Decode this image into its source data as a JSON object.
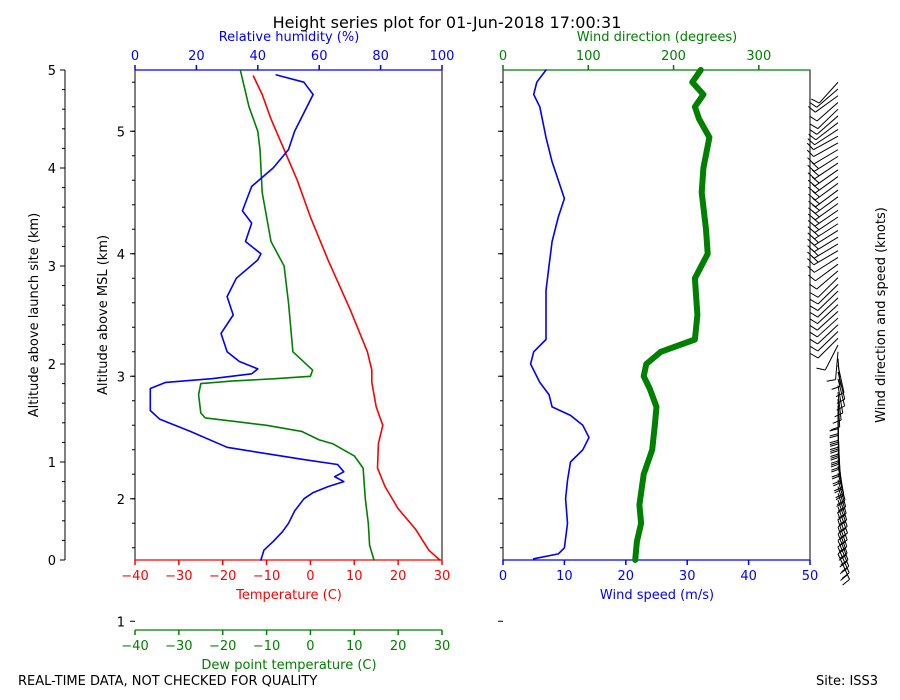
{
  "chart_data": [
    {
      "type": "line",
      "title": "Height series plot for 01-Jun-2018 17:00:31",
      "ylabel_left": "Altitude above launch site (km)",
      "ylabel_inner": "Altitude above MSL (km)",
      "x_bottom": {
        "label": "Temperature (C)",
        "color": "#ff0000",
        "lim": [
          -40,
          30
        ],
        "ticks": [
          "−40",
          "−30",
          "−20",
          "−10",
          "0",
          "10",
          "20",
          "30"
        ]
      },
      "x_bottom2": {
        "label": "Dew point temperature (C)",
        "color": "#008000",
        "lim": [
          -40,
          30
        ],
        "ticks": [
          "−40",
          "−30",
          "−20",
          "−10",
          "0",
          "10",
          "20",
          "30"
        ]
      },
      "x_top": {
        "label": "Relative humidity (%)",
        "color": "#0000ff",
        "lim": [
          0,
          100
        ],
        "ticks": [
          "0",
          "20",
          "40",
          "60",
          "80",
          "100"
        ]
      },
      "y_msl": {
        "lim": [
          1.5,
          5.5
        ],
        "ticks": [
          "1",
          "2",
          "3",
          "4",
          "5"
        ]
      },
      "y_agl": {
        "lim": [
          0,
          5
        ],
        "ticks": [
          "0",
          "1",
          "2",
          "3",
          "4",
          "5"
        ]
      },
      "series": [
        {
          "name": "Temperature",
          "axis": "temp",
          "color": "#ff0000",
          "points": [
            [
              29.5,
              1.5
            ],
            [
              27,
              1.58
            ],
            [
              24,
              1.75
            ],
            [
              20,
              1.92
            ],
            [
              17,
              2.1
            ],
            [
              15.3,
              2.25
            ],
            [
              15.5,
              2.45
            ],
            [
              16.5,
              2.6
            ],
            [
              15,
              2.75
            ],
            [
              14,
              2.95
            ],
            [
              14,
              3.05
            ],
            [
              13,
              3.2
            ],
            [
              9,
              3.55
            ],
            [
              4,
              3.95
            ],
            [
              0,
              4.3
            ],
            [
              -3,
              4.6
            ],
            [
              -6,
              4.85
            ],
            [
              -9,
              5.1
            ],
            [
              -11,
              5.3
            ],
            [
              -13,
              5.45
            ]
          ]
        },
        {
          "name": "Dew point temperature",
          "axis": "temp",
          "color": "#008000",
          "points": [
            [
              14.5,
              1.5
            ],
            [
              14,
              1.56
            ],
            [
              13.5,
              1.62
            ],
            [
              13.2,
              1.8
            ],
            [
              12.5,
              2.0
            ],
            [
              12,
              2.25
            ],
            [
              11,
              2.3
            ],
            [
              10,
              2.35
            ],
            [
              5,
              2.45
            ],
            [
              2,
              2.48
            ],
            [
              -2,
              2.55
            ],
            [
              -10,
              2.6
            ],
            [
              -17,
              2.63
            ],
            [
              -24,
              2.66
            ],
            [
              -25,
              2.7
            ],
            [
              -25.5,
              2.85
            ],
            [
              -25,
              2.94
            ],
            [
              -18,
              2.96
            ],
            [
              -8,
              2.98
            ],
            [
              0,
              3.0
            ],
            [
              0.5,
              3.05
            ],
            [
              -4,
              3.2
            ],
            [
              -4.5,
              3.4
            ],
            [
              -5,
              3.6
            ],
            [
              -6,
              3.9
            ],
            [
              -9,
              4.1
            ],
            [
              -11,
              4.5
            ],
            [
              -11.5,
              4.85
            ],
            [
              -12,
              5.0
            ],
            [
              -14,
              5.2
            ],
            [
              -16,
              5.5
            ]
          ]
        },
        {
          "name": "Relative humidity",
          "axis": "rh",
          "color": "#0000ff",
          "points": [
            [
              41,
              1.5
            ],
            [
              42,
              1.58
            ],
            [
              45,
              1.65
            ],
            [
              48,
              1.73
            ],
            [
              50,
              1.8
            ],
            [
              52,
              1.9
            ],
            [
              55,
              2.0
            ],
            [
              58,
              2.05
            ],
            [
              63,
              2.1
            ],
            [
              68,
              2.14
            ],
            [
              65,
              2.18
            ],
            [
              68,
              2.22
            ],
            [
              66,
              2.28
            ],
            [
              55,
              2.32
            ],
            [
              45,
              2.36
            ],
            [
              30,
              2.42
            ],
            [
              18,
              2.55
            ],
            [
              8,
              2.65
            ],
            [
              5,
              2.72
            ],
            [
              5,
              2.9
            ],
            [
              10,
              2.95
            ],
            [
              25,
              2.98
            ],
            [
              38,
              3.02
            ],
            [
              40,
              3.06
            ],
            [
              34,
              3.12
            ],
            [
              30,
              3.2
            ],
            [
              28,
              3.35
            ],
            [
              32,
              3.5
            ],
            [
              30,
              3.65
            ],
            [
              33,
              3.8
            ],
            [
              40,
              3.95
            ],
            [
              41,
              4.0
            ],
            [
              36,
              4.1
            ],
            [
              38,
              4.25
            ],
            [
              35,
              4.35
            ],
            [
              38,
              4.55
            ],
            [
              45,
              4.7
            ],
            [
              50,
              4.85
            ],
            [
              52,
              5.0
            ],
            [
              55,
              5.15
            ],
            [
              58,
              5.3
            ],
            [
              55,
              5.4
            ],
            [
              46,
              5.46
            ]
          ]
        }
      ]
    },
    {
      "type": "line",
      "x_bottom": {
        "label": "Wind speed (m/s)",
        "color": "#0000ff",
        "lim": [
          0,
          50
        ],
        "ticks": [
          "0",
          "10",
          "20",
          "30",
          "40",
          "50"
        ]
      },
      "x_top": {
        "label": "Wind direction (degrees)",
        "color": "#008000",
        "lim": [
          0,
          360
        ],
        "ticks": [
          "0",
          "100",
          "200",
          "300"
        ]
      },
      "y_msl": {
        "lim": [
          1.5,
          5.5
        ]
      },
      "series": [
        {
          "name": "Wind speed",
          "axis": "speed",
          "color": "#0000ff",
          "points": [
            [
              5,
              1.51
            ],
            [
              9,
              1.55
            ],
            [
              10,
              1.6
            ],
            [
              10.5,
              1.8
            ],
            [
              10.2,
              2.0
            ],
            [
              10.5,
              2.15
            ],
            [
              11,
              2.3
            ],
            [
              13,
              2.4
            ],
            [
              14,
              2.5
            ],
            [
              13,
              2.6
            ],
            [
              11,
              2.68
            ],
            [
              8,
              2.75
            ],
            [
              7.5,
              2.85
            ],
            [
              6,
              2.95
            ],
            [
              4.5,
              3.1
            ],
            [
              5,
              3.2
            ],
            [
              7,
              3.3
            ],
            [
              7,
              3.5
            ],
            [
              7,
              3.7
            ],
            [
              7.5,
              3.9
            ],
            [
              8,
              4.1
            ],
            [
              9,
              4.3
            ],
            [
              10,
              4.45
            ],
            [
              9,
              4.6
            ],
            [
              8,
              4.75
            ],
            [
              7,
              4.95
            ],
            [
              6,
              5.2
            ],
            [
              5,
              5.3
            ],
            [
              5.5,
              5.4
            ],
            [
              7,
              5.5
            ]
          ]
        },
        {
          "name": "Wind direction",
          "axis": "dir",
          "color": "#008000",
          "width": 6,
          "points": [
            [
              155,
              1.5
            ],
            [
              157,
              1.65
            ],
            [
              162,
              1.8
            ],
            [
              160,
              1.95
            ],
            [
              165,
              2.2
            ],
            [
              175,
              2.4
            ],
            [
              178,
              2.6
            ],
            [
              180,
              2.75
            ],
            [
              172,
              2.9
            ],
            [
              165,
              3.0
            ],
            [
              168,
              3.1
            ],
            [
              185,
              3.2
            ],
            [
              225,
              3.3
            ],
            [
              228,
              3.5
            ],
            [
              225,
              3.8
            ],
            [
              240,
              4.0
            ],
            [
              238,
              4.2
            ],
            [
              233,
              4.5
            ],
            [
              235,
              4.7
            ],
            [
              242,
              4.95
            ],
            [
              230,
              5.1
            ],
            [
              225,
              5.2
            ],
            [
              235,
              5.3
            ],
            [
              222,
              5.4
            ],
            [
              232,
              5.5
            ]
          ]
        }
      ]
    }
  ],
  "barbs": {
    "label": "Wind direction and speed (knots)"
  },
  "footer": {
    "left": "REAL-TIME DATA, NOT CHECKED FOR QUALITY",
    "right": "Site: ISS3"
  }
}
